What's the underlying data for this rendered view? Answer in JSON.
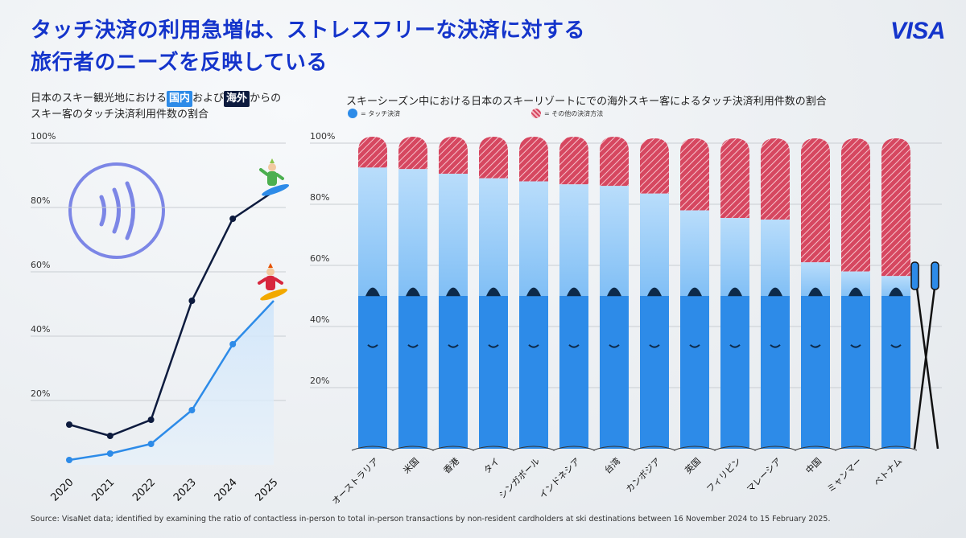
{
  "title": {
    "line1": "タッチ決済の利用急増は、ストレスフリーな決済に対する",
    "line2": "旅行者のニーズを反映している"
  },
  "brand": "VISA",
  "left_chart": {
    "subtitle_pre": "日本のスキー観光地における",
    "domestic_tag": "国内",
    "subtitle_mid": "および",
    "international_tag": "海外",
    "subtitle_post": "からの",
    "subtitle_line2": "スキー客のタッチ決済利用件数の割合"
  },
  "right_chart": {
    "subtitle": "スキーシーズン中における日本のスキーリゾートにでの海外スキー客によるタッチ決済利用件数の割合",
    "legend_contactless": "= タッチ決済",
    "legend_other": "= その他の決済方法"
  },
  "colors": {
    "accent": "#1434cb",
    "contactless": "#2d8be8",
    "contactless_light": "#a9d2f8",
    "other": "#d64760",
    "international_line": "#0d1b3e",
    "domestic_line": "#2d8be8"
  },
  "source": "Source: VisaNet data; identified by examining the ratio of contactless in-person to total in-person transactions by non-resident cardholders at ski destinations between 16 November 2024 to 15 February 2025.",
  "chart_data": [
    {
      "type": "line",
      "title": "日本のスキー観光地における国内および海外からのスキー客のタッチ決済利用件数の割合",
      "x": [
        "2020",
        "2021",
        "2022",
        "2023",
        "2024",
        "2025"
      ],
      "series": [
        {
          "name": "海外",
          "values": [
            12.5,
            9,
            14,
            51,
            76.5,
            85
          ]
        },
        {
          "name": "国内",
          "values": [
            1.5,
            3.5,
            6.5,
            17,
            37.5,
            51
          ]
        }
      ],
      "y_ticks": [
        "20%",
        "40%",
        "60%",
        "80%",
        "100%"
      ],
      "ylim": [
        0,
        100
      ],
      "ylabel": "",
      "xlabel": ""
    },
    {
      "type": "bar",
      "stacked": true,
      "title": "スキーシーズン中における日本のスキーリゾートにでの海外スキー客によるタッチ決済利用件数の割合",
      "categories": [
        "オーストラリア",
        "米国",
        "香港",
        "タイ",
        "シンガポール",
        "インドネシア",
        "台湾",
        "カンボジア",
        "英国",
        "フィリピン",
        "マレーシア",
        "中国",
        "ミャンマー",
        "ベトナム"
      ],
      "series": [
        {
          "name": "タッチ決済",
          "values": [
            92,
            91.5,
            90,
            88.5,
            87.5,
            86.5,
            86,
            83.5,
            78,
            75.5,
            75,
            61,
            58,
            56.5
          ]
        },
        {
          "name": "その他の決済方法",
          "values": [
            8,
            8.5,
            10,
            11.5,
            12.5,
            13.5,
            14,
            16.5,
            22,
            24.5,
            25,
            39,
            42,
            43.5
          ]
        }
      ],
      "y_ticks": [
        "20%",
        "40%",
        "60%",
        "80%",
        "100%"
      ],
      "ylim": [
        0,
        100
      ]
    }
  ]
}
